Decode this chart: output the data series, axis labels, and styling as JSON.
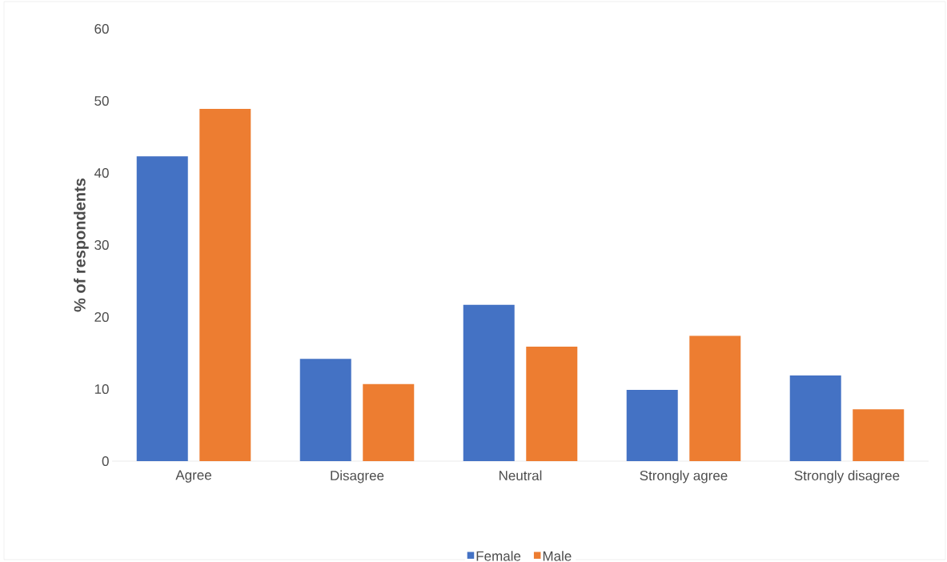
{
  "chart_data": {
    "type": "bar",
    "ylabel": "% of respondents",
    "categories": [
      "Agree",
      "Disagree",
      "Neutral",
      "Strongly agree",
      "Strongly disagree"
    ],
    "series": [
      {
        "name": "Female",
        "color": "#4472c4",
        "values": [
          42.3,
          14.2,
          21.7,
          9.9,
          11.9
        ]
      },
      {
        "name": "Male",
        "color": "#ed7d31",
        "values": [
          48.9,
          10.7,
          15.9,
          17.4,
          7.2
        ]
      }
    ],
    "ylim": [
      0,
      60
    ],
    "yticks": [
      0,
      10,
      20,
      30,
      40,
      50,
      60
    ],
    "grid": false,
    "legend": "bottom"
  }
}
